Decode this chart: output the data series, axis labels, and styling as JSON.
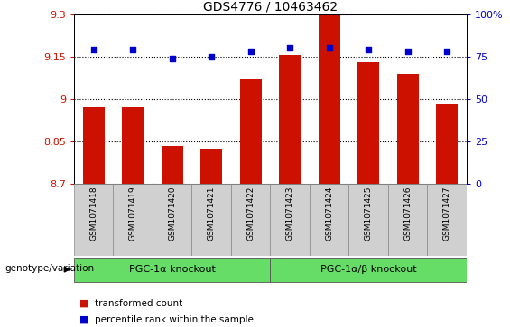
{
  "title": "GDS4776 / 10463462",
  "samples": [
    "GSM1071418",
    "GSM1071419",
    "GSM1071420",
    "GSM1071421",
    "GSM1071422",
    "GSM1071423",
    "GSM1071424",
    "GSM1071425",
    "GSM1071426",
    "GSM1071427"
  ],
  "transformed_count": [
    8.97,
    8.97,
    8.835,
    8.825,
    9.07,
    9.155,
    9.295,
    9.13,
    9.09,
    8.98
  ],
  "percentile_rank": [
    79,
    79,
    74,
    75,
    78,
    80,
    80,
    79,
    78,
    78
  ],
  "ylim_left": [
    8.7,
    9.3
  ],
  "ylim_right": [
    0,
    100
  ],
  "yticks_left": [
    8.7,
    8.85,
    9.0,
    9.15,
    9.3
  ],
  "yticks_right": [
    0,
    25,
    50,
    75,
    100
  ],
  "ytick_labels_left": [
    "8.7",
    "8.85",
    "9",
    "9.15",
    "9.3"
  ],
  "ytick_labels_right": [
    "0",
    "25",
    "50",
    "75",
    "100%"
  ],
  "bar_color": "#cc1100",
  "dot_color": "#0000cc",
  "grid_color": "#000000",
  "bg_color_plot": "#ffffff",
  "bg_color_samples": "#d0d0d0",
  "group1_label": "PGC-1α knockout",
  "group2_label": "PGC-1α/β knockout",
  "group1_color": "#66dd66",
  "group2_color": "#66dd66",
  "group1_indices": [
    0,
    1,
    2,
    3,
    4
  ],
  "group2_indices": [
    5,
    6,
    7,
    8,
    9
  ],
  "legend_bar_label": "transformed count",
  "legend_dot_label": "percentile rank within the sample",
  "genotype_label": "genotype/variation"
}
